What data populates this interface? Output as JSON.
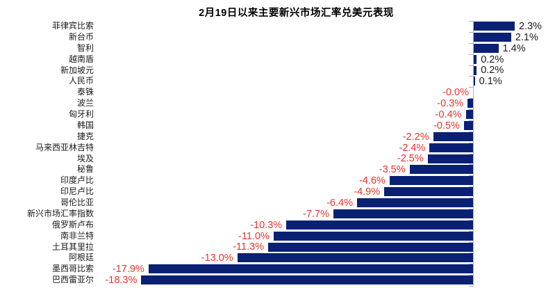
{
  "page": {
    "background": "#ffffff"
  },
  "chart_data": {
    "type": "bar",
    "orientation": "horizontal",
    "title": "2月19日以来主要新兴市场汇率兑美元表现",
    "xlabel": "",
    "ylabel": "",
    "unit": "%",
    "xlim": [
      -19.5,
      4.5
    ],
    "grid": false,
    "legend_position": "none",
    "bar_color": "#0A2173",
    "positive_value_color": "#1A1A1A",
    "negative_value_color": "#E8342C",
    "axis_color": "#A3B0D6",
    "categories": [
      "菲律宾比索",
      "新台币",
      "智利",
      "越南盾",
      "新加坡元",
      "人民币",
      "泰铢",
      "波兰",
      "匈牙利",
      "韩国",
      "捷克",
      "马来西亚林吉特",
      "埃及",
      "秘鲁",
      "印度卢比",
      "印尼卢比",
      "哥伦比亚",
      "新兴市场汇率指数",
      "俄罗斯卢布",
      "南非兰特",
      "土耳其里拉",
      "阿根廷",
      "墨西哥比索",
      "巴西雷亚尔"
    ],
    "values": [
      2.3,
      2.1,
      1.4,
      0.2,
      0.2,
      0.1,
      -0.0,
      -0.3,
      -0.4,
      -0.5,
      -2.2,
      -2.4,
      -2.5,
      -3.5,
      -4.6,
      -4.9,
      -6.4,
      -7.7,
      -10.3,
      -11.0,
      -11.3,
      -13.0,
      -17.9,
      -18.3
    ],
    "value_labels": [
      "2.3%",
      "2.1%",
      "1.4%",
      "0.2%",
      "0.2%",
      "0.1%",
      "-0.0%",
      "-0.3%",
      "-0.4%",
      "-0.5%",
      "-2.2%",
      "-2.4%",
      "-2.5%",
      "-3.5%",
      "-4.6%",
      "-4.9%",
      "-6.4%",
      "-7.7%",
      "-10.3%",
      "-11.0%",
      "-11.3%",
      "-13.0%",
      "-17.9%",
      "-18.3%"
    ]
  }
}
